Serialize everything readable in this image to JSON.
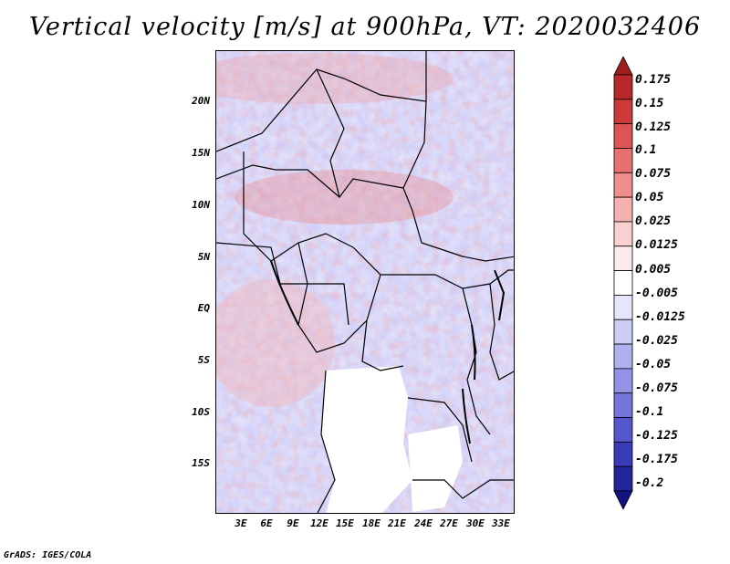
{
  "title": "Vertical velocity [m/s] at 900hPa, VT: 2020032406",
  "credit": "GrADS: IGES/COLA",
  "lat_labels": [
    "20N",
    "15N",
    "10N",
    "5N",
    "EQ",
    "5S",
    "10S",
    "15S"
  ],
  "lon_labels": [
    "3E",
    "6E",
    "9E",
    "12E",
    "15E",
    "18E",
    "21E",
    "24E",
    "27E",
    "30E",
    "33E"
  ],
  "colorbar": {
    "labels": [
      "0.175",
      "0.15",
      "0.125",
      "0.1",
      "0.075",
      "0.05",
      "0.025",
      "0.0125",
      "0.005",
      "-0.005",
      "-0.0125",
      "-0.025",
      "-0.05",
      "-0.075",
      "-0.1",
      "-0.125",
      "-0.175",
      "-0.2"
    ],
    "colors": [
      "#9e1e1e",
      "#b82828",
      "#cc3a3a",
      "#dc5454",
      "#e87070",
      "#f08e8e",
      "#f6b0b0",
      "#fad0d0",
      "#fdeaea",
      "#ffffff",
      "#e6e6fb",
      "#cccdf6",
      "#b0b0ef",
      "#9293e6",
      "#7374dc",
      "#5556cd",
      "#3a3bb8",
      "#24249a",
      "#141480"
    ]
  }
}
